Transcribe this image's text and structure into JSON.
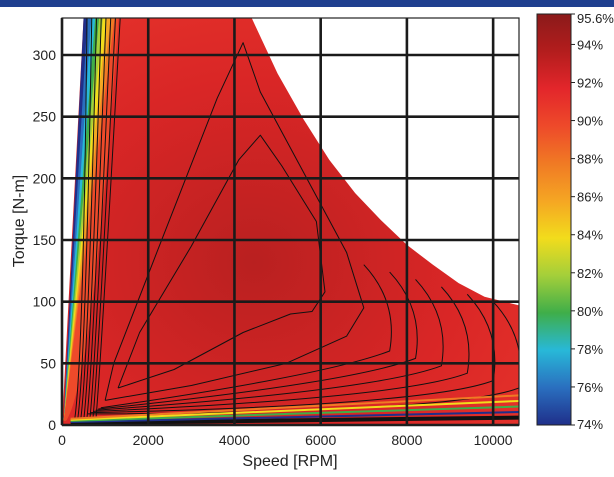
{
  "chart_data": {
    "type": "heatmap",
    "subtype": "efficiency-contour-map",
    "title": "",
    "xlabel": "Speed [RPM]",
    "ylabel": "Torque [N-m]",
    "xlim": [
      0,
      10600
    ],
    "ylim": [
      0,
      330
    ],
    "x_ticks": [
      0,
      2000,
      4000,
      6000,
      8000,
      10000
    ],
    "y_ticks": [
      0,
      50,
      100,
      150,
      200,
      250,
      300
    ],
    "grid": true,
    "colorbar": {
      "min": 74,
      "max": 95.6,
      "unit": "%",
      "ticks": [
        "95.6%",
        "94%",
        "92%",
        "90%",
        "88%",
        "86%",
        "84%",
        "82%",
        "80%",
        "78%",
        "76%",
        "74%"
      ],
      "tick_values": [
        95.6,
        94,
        92,
        90,
        88,
        86,
        84,
        82,
        80,
        78,
        76,
        74
      ],
      "colors": [
        "#8b1a1a",
        "#b31d1d",
        "#e3262b",
        "#ee4a2a",
        "#f07a24",
        "#f5a623",
        "#f2dc1c",
        "#a4cf3a",
        "#3fae49",
        "#28b8d8",
        "#2a6fbf",
        "#1f2f8a"
      ]
    },
    "torque_speed_envelope": {
      "x": [
        500,
        4400,
        5000,
        5600,
        6200,
        6800,
        7400,
        8000,
        8600,
        9200,
        9800,
        10600
      ],
      "y": [
        330,
        330,
        285,
        248,
        215,
        188,
        166,
        146,
        130,
        115,
        104,
        97
      ]
    },
    "peak_region": {
      "max_efficiency": 95.6,
      "center_speed": 4400,
      "center_torque": 140
    }
  }
}
